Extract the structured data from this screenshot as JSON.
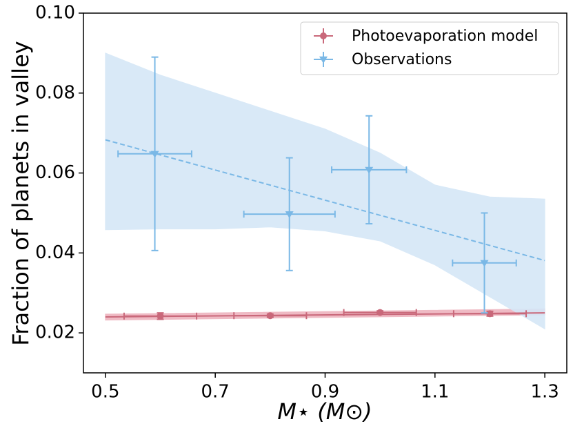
{
  "chart_data": {
    "type": "errorbar",
    "ylabel": "Fraction of planets in valley",
    "xlabel": "M⋆ (M⊙)",
    "xlim": [
      0.46,
      1.34
    ],
    "ylim": [
      0.01,
      0.1
    ],
    "xticks": [
      0.5,
      0.7,
      0.9,
      1.1,
      1.3
    ],
    "yticks": [
      0.02,
      0.04,
      0.06,
      0.08,
      {
        "value": 0.1,
        "label": "0.10"
      }
    ],
    "legend": "upper right",
    "series": [
      {
        "name": "Photoevaporation model",
        "color": "#c9687a",
        "band_color": "#eeb3be",
        "marker": "circle",
        "x": [
          0.6,
          0.8,
          1.0,
          1.2
        ],
        "values": [
          0.0242,
          0.0243,
          0.0251,
          0.0248
        ],
        "xerr": [
          0.066,
          0.066,
          0.066,
          0.066
        ],
        "yerr": [
          0.0008,
          0.0004,
          0.0004,
          0.0006
        ],
        "fit": {
          "x": [
            0.5,
            1.3
          ],
          "values": [
            0.024,
            0.025
          ],
          "dash": false
        },
        "band": {
          "x": [
            0.5,
            1.3
          ],
          "lower": [
            0.0232,
            0.0245
          ],
          "upper": [
            0.0247,
            0.026
          ]
        }
      },
      {
        "name": "Observations",
        "color": "#7ab8e6",
        "band_color": "#d5e7f7",
        "marker": "triangle",
        "x": [
          0.59,
          0.835,
          0.98,
          1.19
        ],
        "values": [
          0.0648,
          0.0497,
          0.0608,
          0.0375
        ],
        "xerr": [
          0.067,
          0.083,
          0.068,
          0.058
        ],
        "yerr": [
          0.0242,
          0.0141,
          0.0135,
          0.0125
        ],
        "fit": {
          "x": [
            0.5,
            1.3
          ],
          "values": [
            0.0683,
            0.0381
          ],
          "dash": true
        },
        "band": {
          "x": [
            0.5,
            0.6,
            0.7,
            0.8,
            0.9,
            1.0,
            1.1,
            1.2,
            1.3
          ],
          "lower": [
            0.0458,
            0.046,
            0.046,
            0.0465,
            0.0455,
            0.043,
            0.037,
            0.029,
            0.021
          ],
          "upper": [
            0.09,
            0.0845,
            0.08,
            0.0755,
            0.071,
            0.065,
            0.057,
            0.054,
            0.0535
          ]
        }
      }
    ]
  }
}
